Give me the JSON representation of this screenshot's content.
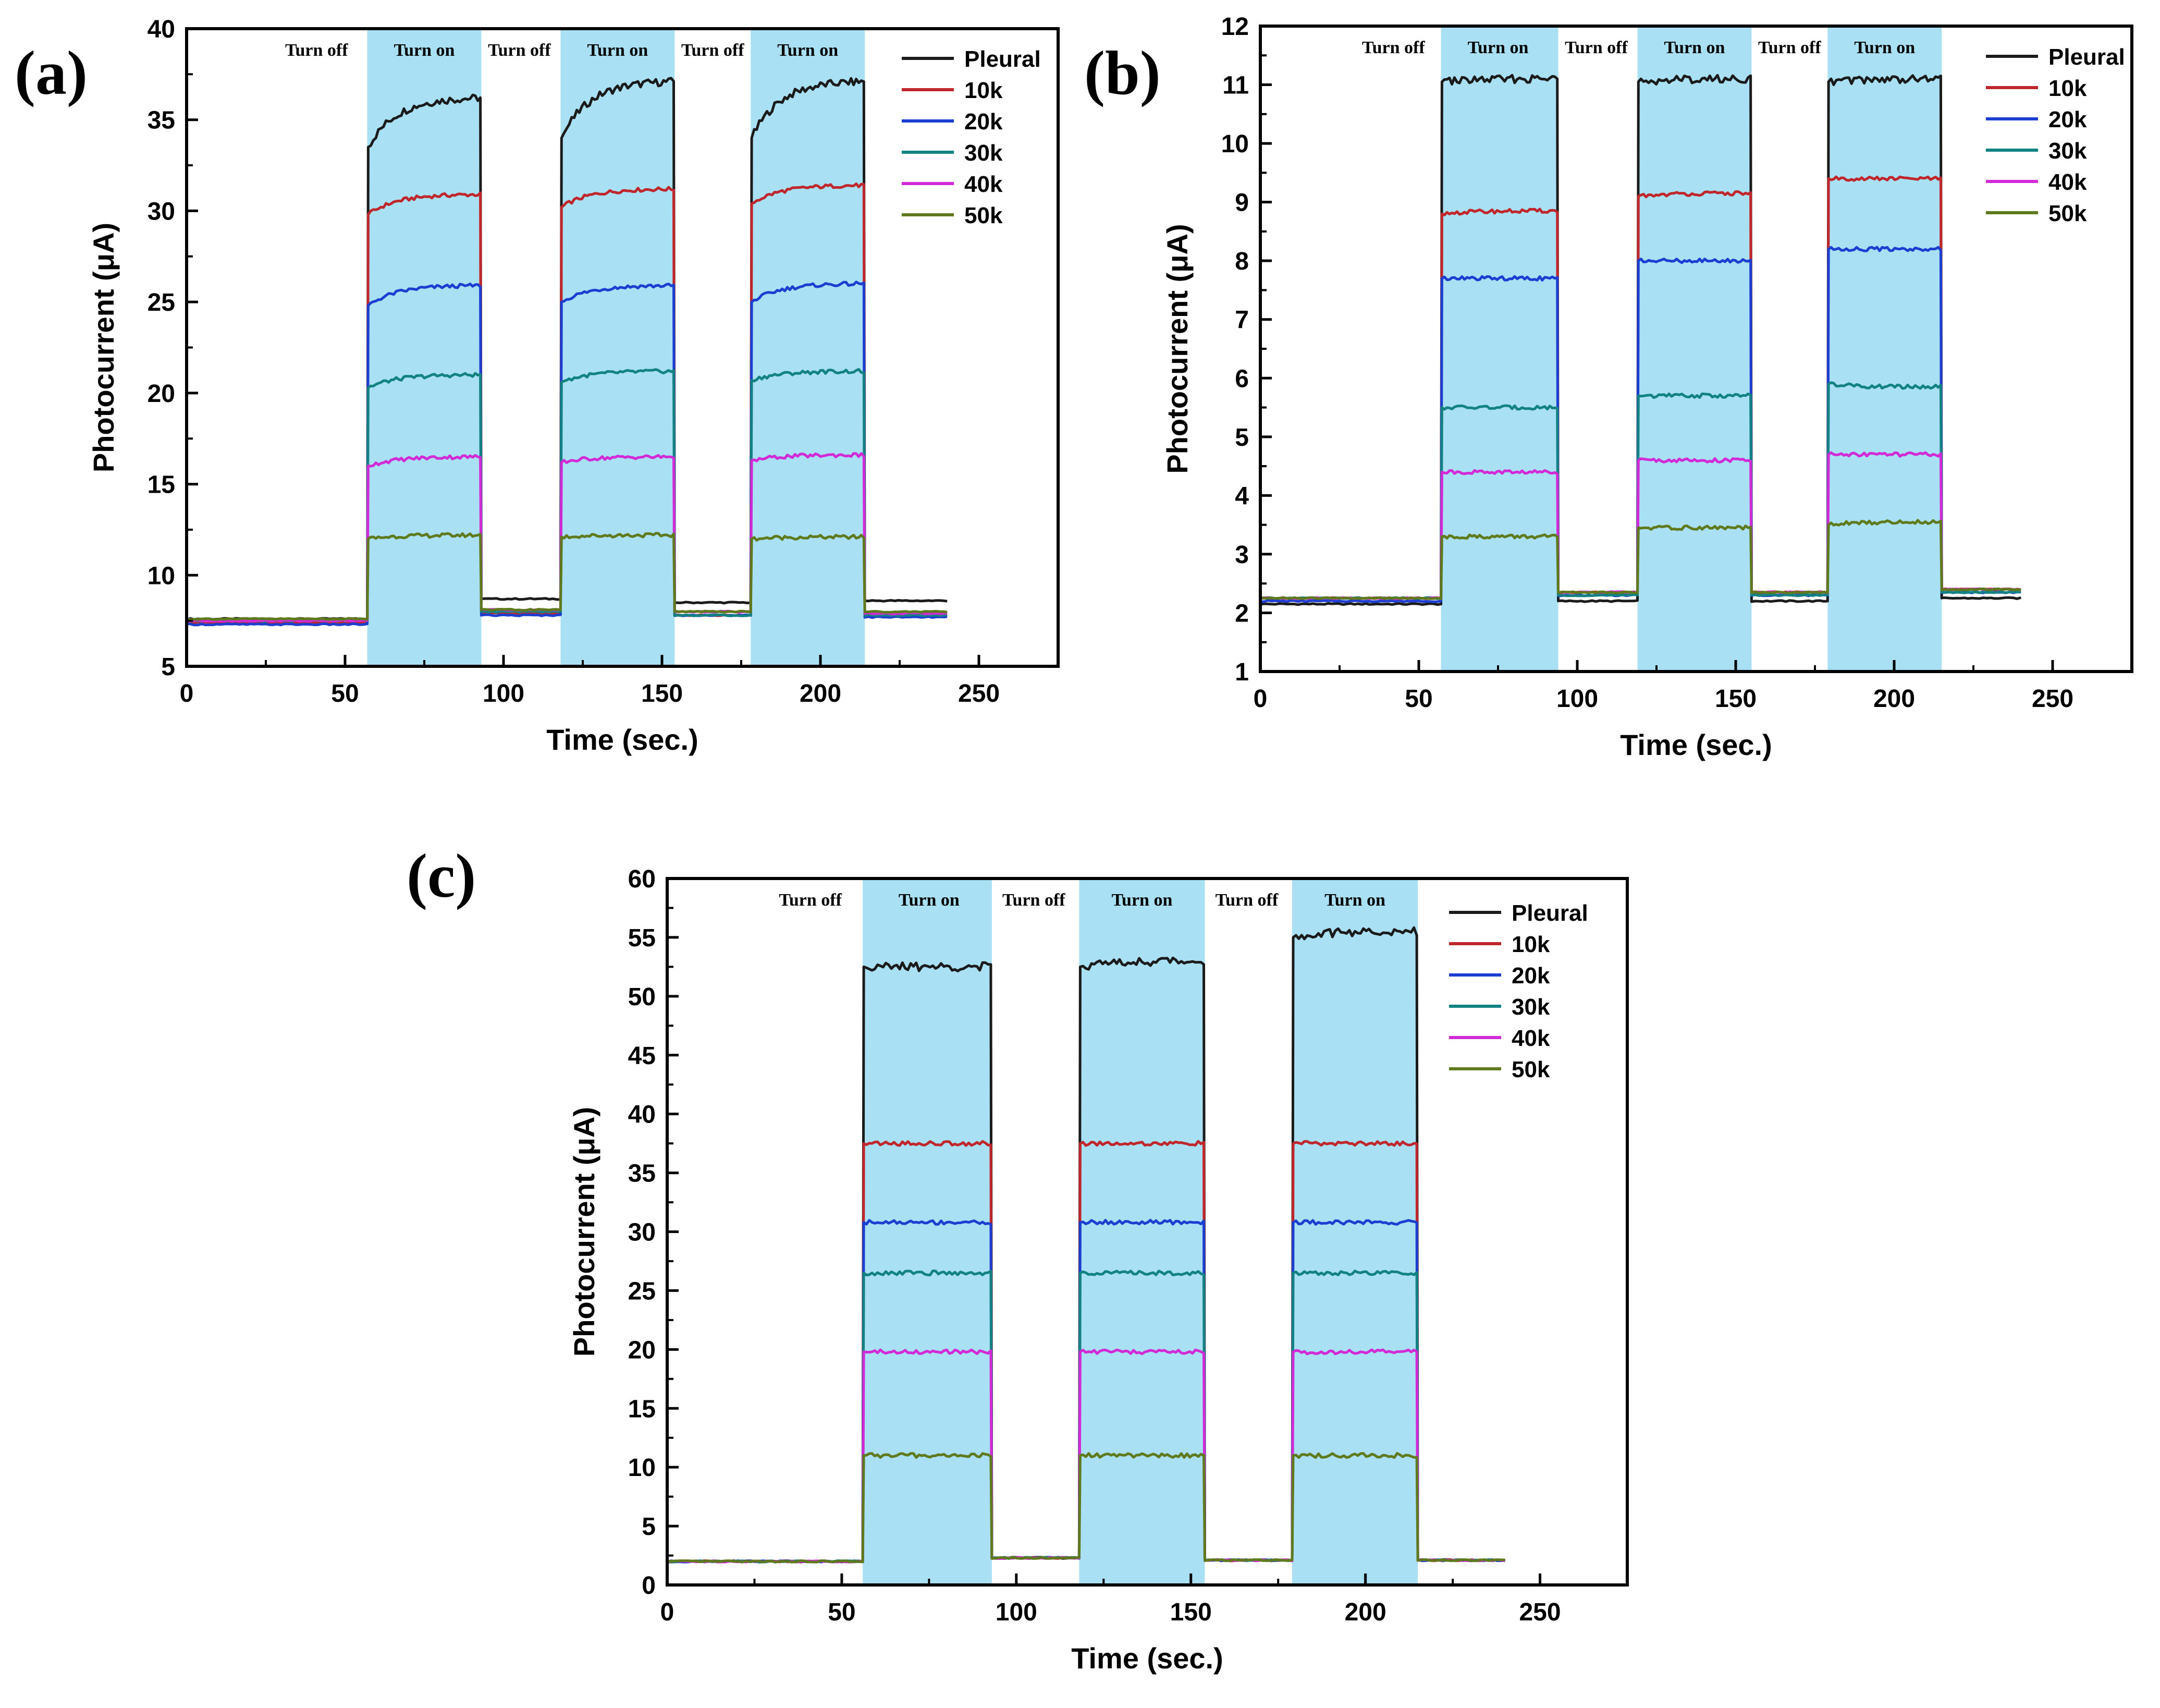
{
  "figure_title": "",
  "chart_data": [
    {
      "id": "a",
      "panel_label": "(a)",
      "type": "line",
      "title": "",
      "xlabel": "Time (sec.)",
      "ylabel": "Photocurrent (μA)",
      "xlim": [
        0,
        275
      ],
      "ylim": [
        5,
        40
      ],
      "xticks": [
        0,
        50,
        100,
        150,
        200,
        250
      ],
      "yticks": [
        5,
        10,
        15,
        20,
        25,
        30,
        35,
        40
      ],
      "xtick_labels": [
        "0",
        "50",
        "100",
        "150",
        "200",
        "250"
      ],
      "ytick_labels": [
        "5",
        "10",
        "15",
        "20",
        "25",
        "30",
        "35",
        "40"
      ],
      "legend_position": "top-right",
      "on_periods": [
        [
          57,
          93
        ],
        [
          118,
          154
        ],
        [
          178,
          214
        ]
      ],
      "phase_labels": [
        {
          "text": "Turn off",
          "x": 41
        },
        {
          "text": "Turn on",
          "x": 75
        },
        {
          "text": "Turn off",
          "x": 105
        },
        {
          "text": "Turn on",
          "x": 136
        },
        {
          "text": "Turn off",
          "x": 166
        },
        {
          "text": "Turn on",
          "x": 196
        }
      ],
      "series": [
        {
          "name": "Pleural",
          "color": "#1b1b1b",
          "off_levels": [
            7.6,
            8.7,
            8.5,
            8.6
          ],
          "on_start": [
            33.5,
            34.0,
            34.0
          ],
          "on_end": [
            36.2,
            37.1,
            37.1
          ]
        },
        {
          "name": "10k",
          "color": "#c0272d",
          "off_levels": [
            7.4,
            7.9,
            7.8,
            7.9
          ],
          "on_start": [
            29.8,
            30.2,
            30.4
          ],
          "on_end": [
            30.9,
            31.2,
            31.4
          ]
        },
        {
          "name": "20k",
          "color": "#1c3fd1",
          "off_levels": [
            7.3,
            7.8,
            7.8,
            7.7
          ],
          "on_start": [
            24.8,
            25.0,
            25.0
          ],
          "on_end": [
            25.9,
            25.9,
            26.0
          ]
        },
        {
          "name": "30k",
          "color": "#138282",
          "off_levels": [
            7.5,
            8.0,
            7.8,
            7.8
          ],
          "on_start": [
            20.3,
            20.6,
            20.7
          ],
          "on_end": [
            21.0,
            21.2,
            21.2
          ]
        },
        {
          "name": "40k",
          "color": "#d12ad6",
          "off_levels": [
            7.5,
            8.1,
            8.0,
            7.9
          ],
          "on_start": [
            16.0,
            16.2,
            16.3
          ],
          "on_end": [
            16.5,
            16.5,
            16.6
          ]
        },
        {
          "name": "50k",
          "color": "#5f7a1c",
          "off_levels": [
            7.6,
            8.1,
            8.0,
            8.0
          ],
          "on_start": [
            12.0,
            12.1,
            12.0
          ],
          "on_end": [
            12.2,
            12.2,
            12.1
          ]
        }
      ]
    },
    {
      "id": "b",
      "panel_label": "(b)",
      "type": "line",
      "title": "",
      "xlabel": "Time (sec.)",
      "ylabel": "Photocurrent (μA)",
      "xlim": [
        0,
        275
      ],
      "ylim": [
        1,
        12
      ],
      "xticks": [
        0,
        50,
        100,
        150,
        200,
        250
      ],
      "yticks": [
        1,
        2,
        3,
        4,
        5,
        6,
        7,
        8,
        9,
        10,
        11,
        12
      ],
      "xtick_labels": [
        "0",
        "50",
        "100",
        "150",
        "200",
        "250"
      ],
      "ytick_labels": [
        "1",
        "2",
        "3",
        "4",
        "5",
        "6",
        "7",
        "8",
        "9",
        "10",
        "11",
        "12"
      ],
      "legend_position": "top-right",
      "on_periods": [
        [
          57,
          94
        ],
        [
          119,
          155
        ],
        [
          179,
          215
        ]
      ],
      "phase_labels": [
        {
          "text": "Turn off",
          "x": 42
        },
        {
          "text": "Turn on",
          "x": 75
        },
        {
          "text": "Turn off",
          "x": 106
        },
        {
          "text": "Turn on",
          "x": 137
        },
        {
          "text": "Turn off",
          "x": 167
        },
        {
          "text": "Turn on",
          "x": 197
        }
      ],
      "series": [
        {
          "name": "Pleural",
          "color": "#1b1b1b",
          "off_levels": [
            2.15,
            2.2,
            2.2,
            2.25
          ],
          "on_start": [
            11.05,
            11.05,
            11.05
          ],
          "on_end": [
            11.1,
            11.1,
            11.1
          ]
        },
        {
          "name": "10k",
          "color": "#c0272d",
          "off_levels": [
            2.25,
            2.35,
            2.35,
            2.4
          ],
          "on_start": [
            8.8,
            9.1,
            9.4
          ],
          "on_end": [
            8.85,
            9.15,
            9.4
          ]
        },
        {
          "name": "20k",
          "color": "#1c3fd1",
          "off_levels": [
            2.2,
            2.3,
            2.3,
            2.35
          ],
          "on_start": [
            7.7,
            8.0,
            8.2
          ],
          "on_end": [
            7.7,
            8.0,
            8.2
          ]
        },
        {
          "name": "30k",
          "color": "#138282",
          "off_levels": [
            2.25,
            2.3,
            2.3,
            2.35
          ],
          "on_start": [
            5.5,
            5.7,
            5.9
          ],
          "on_end": [
            5.5,
            5.7,
            5.85
          ]
        },
        {
          "name": "40k",
          "color": "#d12ad6",
          "off_levels": [
            2.25,
            2.35,
            2.35,
            2.4
          ],
          "on_start": [
            4.4,
            4.6,
            4.7
          ],
          "on_end": [
            4.4,
            4.6,
            4.7
          ]
        },
        {
          "name": "50k",
          "color": "#5f7a1c",
          "off_levels": [
            2.25,
            2.35,
            2.35,
            2.4
          ],
          "on_start": [
            3.3,
            3.45,
            3.5
          ],
          "on_end": [
            3.3,
            3.45,
            3.55
          ]
        }
      ]
    },
    {
      "id": "c",
      "panel_label": "(c)",
      "type": "line",
      "title": "",
      "xlabel": "Time (sec.)",
      "ylabel": "Photocurrent (μA)",
      "xlim": [
        0,
        275
      ],
      "ylim": [
        0,
        60
      ],
      "xticks": [
        0,
        50,
        100,
        150,
        200,
        250
      ],
      "yticks": [
        0,
        5,
        10,
        15,
        20,
        25,
        30,
        35,
        40,
        45,
        50,
        55,
        60
      ],
      "xtick_labels": [
        "0",
        "50",
        "100",
        "150",
        "200",
        "250"
      ],
      "ytick_labels": [
        "0",
        "5",
        "10",
        "15",
        "20",
        "25",
        "30",
        "35",
        "40",
        "45",
        "50",
        "55",
        "60"
      ],
      "legend_position": "top-right",
      "on_periods": [
        [
          56,
          93
        ],
        [
          118,
          154
        ],
        [
          179,
          215
        ]
      ],
      "phase_labels": [
        {
          "text": "Turn off",
          "x": 41
        },
        {
          "text": "Turn on",
          "x": 75
        },
        {
          "text": "Turn off",
          "x": 105
        },
        {
          "text": "Turn on",
          "x": 136
        },
        {
          "text": "Turn off",
          "x": 166
        },
        {
          "text": "Turn on",
          "x": 197
        }
      ],
      "series": [
        {
          "name": "Pleural",
          "color": "#1b1b1b",
          "off_levels": [
            2.0,
            2.3,
            2.1,
            2.1
          ],
          "on_start": [
            52.5,
            52.5,
            55.0
          ],
          "on_end": [
            52.5,
            53.0,
            55.5
          ]
        },
        {
          "name": "10k",
          "color": "#c0272d",
          "off_levels": [
            2.0,
            2.3,
            2.1,
            2.1
          ],
          "on_start": [
            37.5,
            37.5,
            37.5
          ],
          "on_end": [
            37.5,
            37.5,
            37.5
          ]
        },
        {
          "name": "20k",
          "color": "#1c3fd1",
          "off_levels": [
            2.0,
            2.3,
            2.1,
            2.1
          ],
          "on_start": [
            30.8,
            30.8,
            30.8
          ],
          "on_end": [
            30.8,
            30.8,
            30.8
          ]
        },
        {
          "name": "30k",
          "color": "#138282",
          "off_levels": [
            2.0,
            2.3,
            2.1,
            2.1
          ],
          "on_start": [
            26.5,
            26.5,
            26.5
          ],
          "on_end": [
            26.5,
            26.5,
            26.5
          ]
        },
        {
          "name": "40k",
          "color": "#d12ad6",
          "off_levels": [
            2.0,
            2.3,
            2.1,
            2.1
          ],
          "on_start": [
            19.8,
            19.8,
            19.8
          ],
          "on_end": [
            19.8,
            19.8,
            19.8
          ]
        },
        {
          "name": "50k",
          "color": "#5f7a1c",
          "off_levels": [
            2.0,
            2.3,
            2.1,
            2.1
          ],
          "on_start": [
            11.0,
            11.0,
            11.0
          ],
          "on_end": [
            11.0,
            11.0,
            11.0
          ]
        }
      ]
    }
  ],
  "colors": {
    "on_band": "#a9e0f4",
    "axis": "#000000",
    "background": "#ffffff"
  }
}
